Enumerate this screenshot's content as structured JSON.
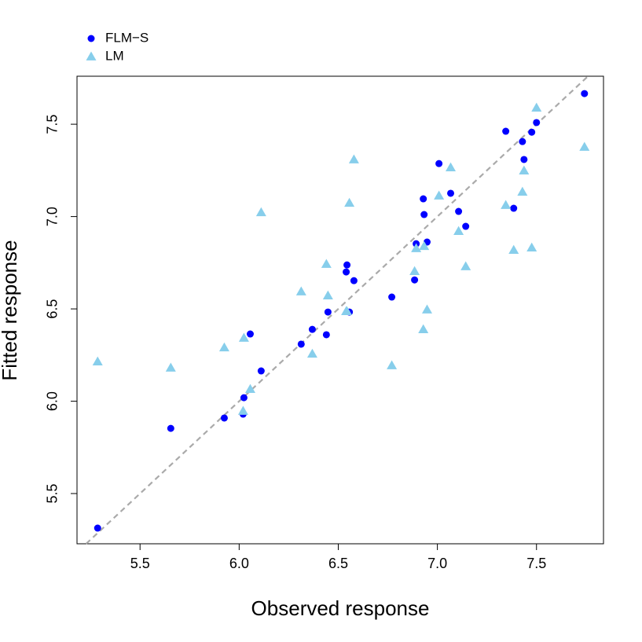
{
  "chart_data": {
    "type": "scatter",
    "x_label": "Observed response",
    "y_label": "Fitted response",
    "x": [
      5.286,
      5.655,
      5.925,
      6.02,
      6.024,
      6.056,
      6.111,
      6.313,
      6.369,
      6.44,
      6.448,
      6.54,
      6.544,
      6.556,
      6.579,
      6.77,
      6.885,
      6.893,
      6.929,
      6.933,
      6.948,
      7.008,
      7.067,
      7.107,
      7.143,
      7.345,
      7.385,
      7.429,
      7.437,
      7.476,
      7.5,
      7.742
    ],
    "series": [
      {
        "name": "FLM−S",
        "color": "#0000ff",
        "marker": "circle",
        "values": [
          5.313,
          5.853,
          5.909,
          5.93,
          6.019,
          6.364,
          6.164,
          6.309,
          6.389,
          6.36,
          6.483,
          6.7,
          6.738,
          6.483,
          6.653,
          6.564,
          6.657,
          6.853,
          7.096,
          7.011,
          6.862,
          7.287,
          7.126,
          7.028,
          6.947,
          7.462,
          7.045,
          7.406,
          7.309,
          7.457,
          7.509,
          7.666
        ]
      },
      {
        "name": "LM",
        "color": "#87ceeb",
        "marker": "triangle",
        "values": [
          6.215,
          6.181,
          6.291,
          5.947,
          6.343,
          6.066,
          7.023,
          6.594,
          6.257,
          6.743,
          6.572,
          6.487,
          6.487,
          7.074,
          7.309,
          6.194,
          6.704,
          6.828,
          6.389,
          6.84,
          6.496,
          7.113,
          7.266,
          6.921,
          6.73,
          7.062,
          6.819,
          7.134,
          7.249,
          6.832,
          7.589,
          7.377
        ]
      }
    ],
    "xlim": [
      5.182,
      7.838
    ],
    "ylim": [
      5.228,
      7.76
    ],
    "xticks": [
      5.5,
      {
        "value": 6,
        "label": "6.0"
      },
      6.5,
      {
        "value": 7,
        "label": "7.0"
      },
      7.5
    ],
    "yticks": [
      5.5,
      {
        "value": 6,
        "label": "6.0"
      },
      6.5,
      {
        "value": 7,
        "label": "7.0"
      },
      7.5
    ],
    "diagonal": true,
    "diagonal_color": "#aaaaaa",
    "legend": "top-left"
  }
}
